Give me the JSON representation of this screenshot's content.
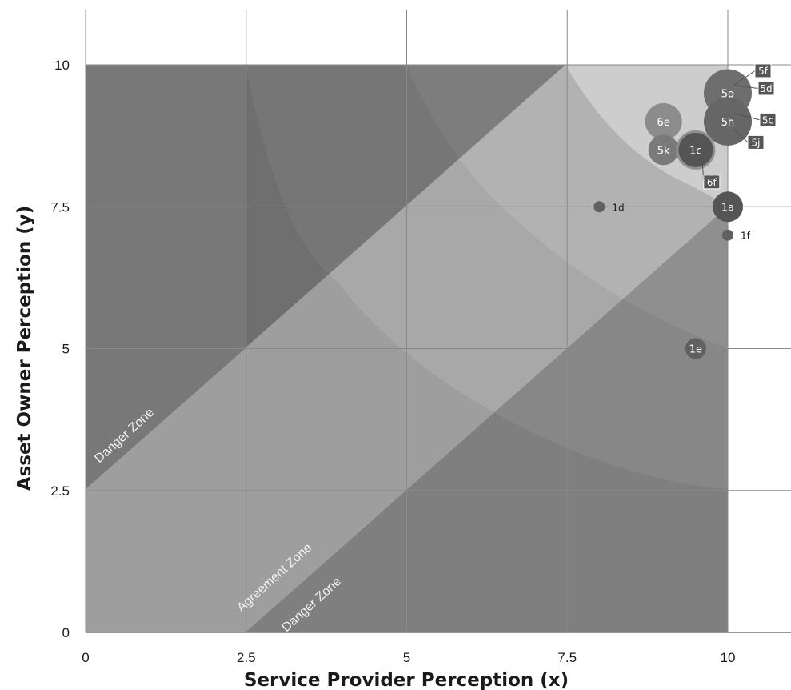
{
  "chart_data": {
    "type": "scatter",
    "xlabel": "Service Provider Perception (x)",
    "ylabel": "Asset Owner Perception (y)",
    "xlim": [
      0,
      11
    ],
    "ylim": [
      0,
      11
    ],
    "x_ticks": [
      "0",
      "2.5",
      "5",
      "7.5",
      "10"
    ],
    "y_ticks": [
      "0",
      "2.5",
      "5",
      "7.5",
      "10"
    ],
    "grid": true,
    "zone_labels": [
      "Danger Zone",
      "Agreement Zone",
      "Danger Zone"
    ],
    "points": [
      {
        "label": "5g",
        "x": 10,
        "y": 9.5,
        "size": "large",
        "shade": "#6e6e6e",
        "label_inside": true
      },
      {
        "label": "5h",
        "x": 10,
        "y": 9.0,
        "size": "large",
        "shade": "#666666",
        "label_inside": true
      },
      {
        "label": "6e",
        "x": 9.0,
        "y": 9.0,
        "size": "medium",
        "shade": "#8c8c8c",
        "label_inside": true
      },
      {
        "label": "5k",
        "x": 9.0,
        "y": 8.5,
        "size": "small",
        "shade": "#7a7a7a",
        "label_inside": true
      },
      {
        "label": "1c",
        "x": 9.5,
        "y": 8.5,
        "size": "medium",
        "shade": "#555555",
        "label_inside": true
      },
      {
        "label": "1a",
        "x": 10,
        "y": 7.5,
        "size": "small",
        "shade": "#555555",
        "label_inside": true
      },
      {
        "label": "1e",
        "x": 9.5,
        "y": 5.0,
        "size": "tiny",
        "shade": "#606060",
        "label_inside": true
      },
      {
        "label": "1d",
        "x": 8.0,
        "y": 7.5,
        "size": "dot",
        "shade": "#606060",
        "label_inside": false
      },
      {
        "label": "1f",
        "x": 10,
        "y": 7.0,
        "size": "dot",
        "shade": "#606060",
        "label_inside": false
      },
      {
        "label": "5f",
        "x": 10,
        "y": 9.5,
        "size": "tag",
        "shade": "#555555",
        "label_inside": false
      },
      {
        "label": "5d",
        "x": 10,
        "y": 9.5,
        "size": "tag",
        "shade": "#555555",
        "label_inside": false
      },
      {
        "label": "5c",
        "x": 10,
        "y": 9.0,
        "size": "tag",
        "shade": "#555555",
        "label_inside": false
      },
      {
        "label": "5j",
        "x": 10,
        "y": 9.0,
        "size": "tag",
        "shade": "#555555",
        "label_inside": false
      },
      {
        "label": "6f",
        "x": 9.5,
        "y": 8.5,
        "size": "tag",
        "shade": "#555555",
        "label_inside": false
      }
    ]
  }
}
